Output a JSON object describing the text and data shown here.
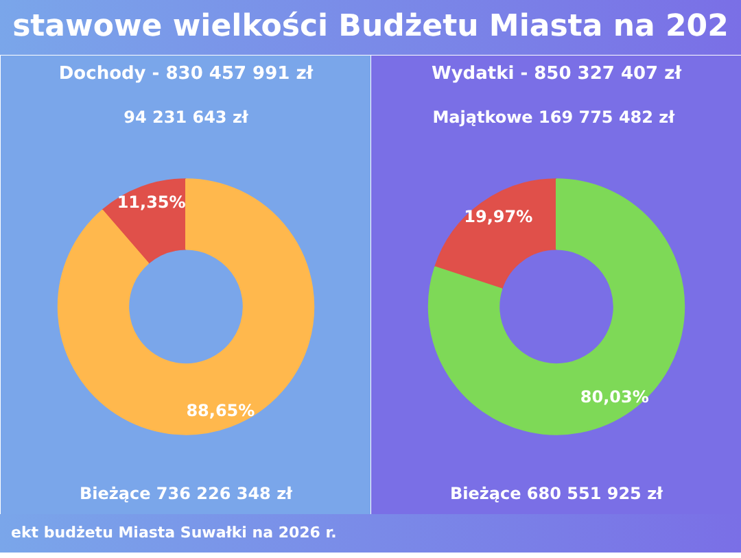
{
  "chart_data": [
    {
      "type": "donut",
      "title": "stawowe wielkości Budżetu Miasta na 202",
      "subtitle": "Dochody - 830 457 991 zł",
      "annotations": [
        "ekt budżetu Miasta Suwałki na 2026 r."
      ],
      "categories": [
        "94 231 643 zł",
        "Bieżące 736 226 348 zł"
      ],
      "values": [
        11.35,
        88.65
      ],
      "colors": [
        "#e0504a",
        "#ffb84d"
      ],
      "value_labels": [
        "11,35%",
        "88,65%"
      ]
    },
    {
      "type": "donut",
      "subtitle": "Wydatki - 850 327 407 zł",
      "categories": [
        "Majątkowe  169 775 482 zł",
        "Bieżące 680 551 925 zł"
      ],
      "values": [
        19.97,
        80.03
      ],
      "colors": [
        "#e0504a",
        "#7ed957"
      ],
      "value_labels": [
        "19,97%",
        "80,03%"
      ]
    }
  ]
}
